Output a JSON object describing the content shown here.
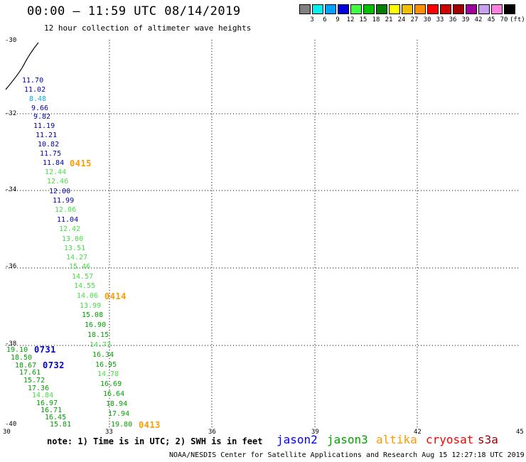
{
  "header": {
    "title": "00:00 – 11:59 UTC 08/14/2019",
    "subtitle": "12 hour collection of altimeter wave heights"
  },
  "scale": {
    "colors": [
      "#808080",
      "#00f0f0",
      "#00a0ff",
      "#0000dd",
      "#40ff40",
      "#00c000",
      "#008000",
      "#ffff00",
      "#f0c000",
      "#ff9000",
      "#ff0000",
      "#d00000",
      "#a00000",
      "#a000a0",
      "#c8a0f0",
      "#ff80e0",
      "#000000"
    ],
    "labels": [
      "3",
      "6",
      "9",
      "12",
      "15",
      "18",
      "21",
      "24",
      "27",
      "30",
      "33",
      "36",
      "39",
      "42",
      "45",
      "70",
      "(ft)"
    ]
  },
  "axes": {
    "lat_labels": [
      "-30",
      "-32",
      "-34",
      "-36",
      "-38",
      "-40"
    ],
    "lon_labels": [
      "30",
      "33",
      "36",
      "39",
      "42",
      "45"
    ]
  },
  "tracks": {
    "jason2_values": [
      "11.70",
      "11.02",
      "9.66",
      "9.82",
      "11.19",
      "11.21",
      "10.82",
      "11.75",
      "11.84",
      "12.00",
      "11.99",
      "11.04"
    ],
    "jason2_light_values": [
      "8.48"
    ],
    "jason3_light_values": [
      "12.44",
      "12.46",
      "12.06",
      "12.42",
      "13.00",
      "13.51",
      "14.27",
      "15.46",
      "14.57",
      "14.55",
      "14.06",
      "13.99",
      "15.08",
      "16.90",
      "14.73",
      "14.84",
      "14.78"
    ],
    "jason3_dark_values": [
      "18.15",
      "16.34",
      "16.95",
      "16.69",
      "16.64",
      "18.94",
      "17.94",
      "19.80"
    ],
    "sw_values": [
      "19.10",
      "18.50",
      "18.67",
      "17.61",
      "15.72",
      "17.36",
      "16.97",
      "16.71",
      "16.45",
      "15.81"
    ],
    "times": {
      "t0415": "0415",
      "t0414": "0414",
      "t0413": "0413",
      "t0731": "0731",
      "t0732": "0732"
    }
  },
  "note": "note: 1) Time is in UTC; 2) SWH is in feet",
  "legend": {
    "jason2": "jason2",
    "jason3": "jason3",
    "altika": "altika",
    "cryosat": "cryosat",
    "s3a": "s3a",
    "colors": {
      "jason2": "#0000ff",
      "jason3": "#00a000",
      "altika": "#ff9900",
      "cryosat": "#ff0000",
      "s3a": "#990000",
      "track_dark_blue": "#0000aa",
      "track_cyan": "#00b0e0",
      "track_light_green": "#44dd44",
      "track_dark_green": "#00a000",
      "time_orange": "#ff9900",
      "time_blue": "#0000cc"
    }
  },
  "footer": "NOAA/NESDIS Center for Satellite Applications and Research   Aug 15 12:27:18 UTC 2019"
}
